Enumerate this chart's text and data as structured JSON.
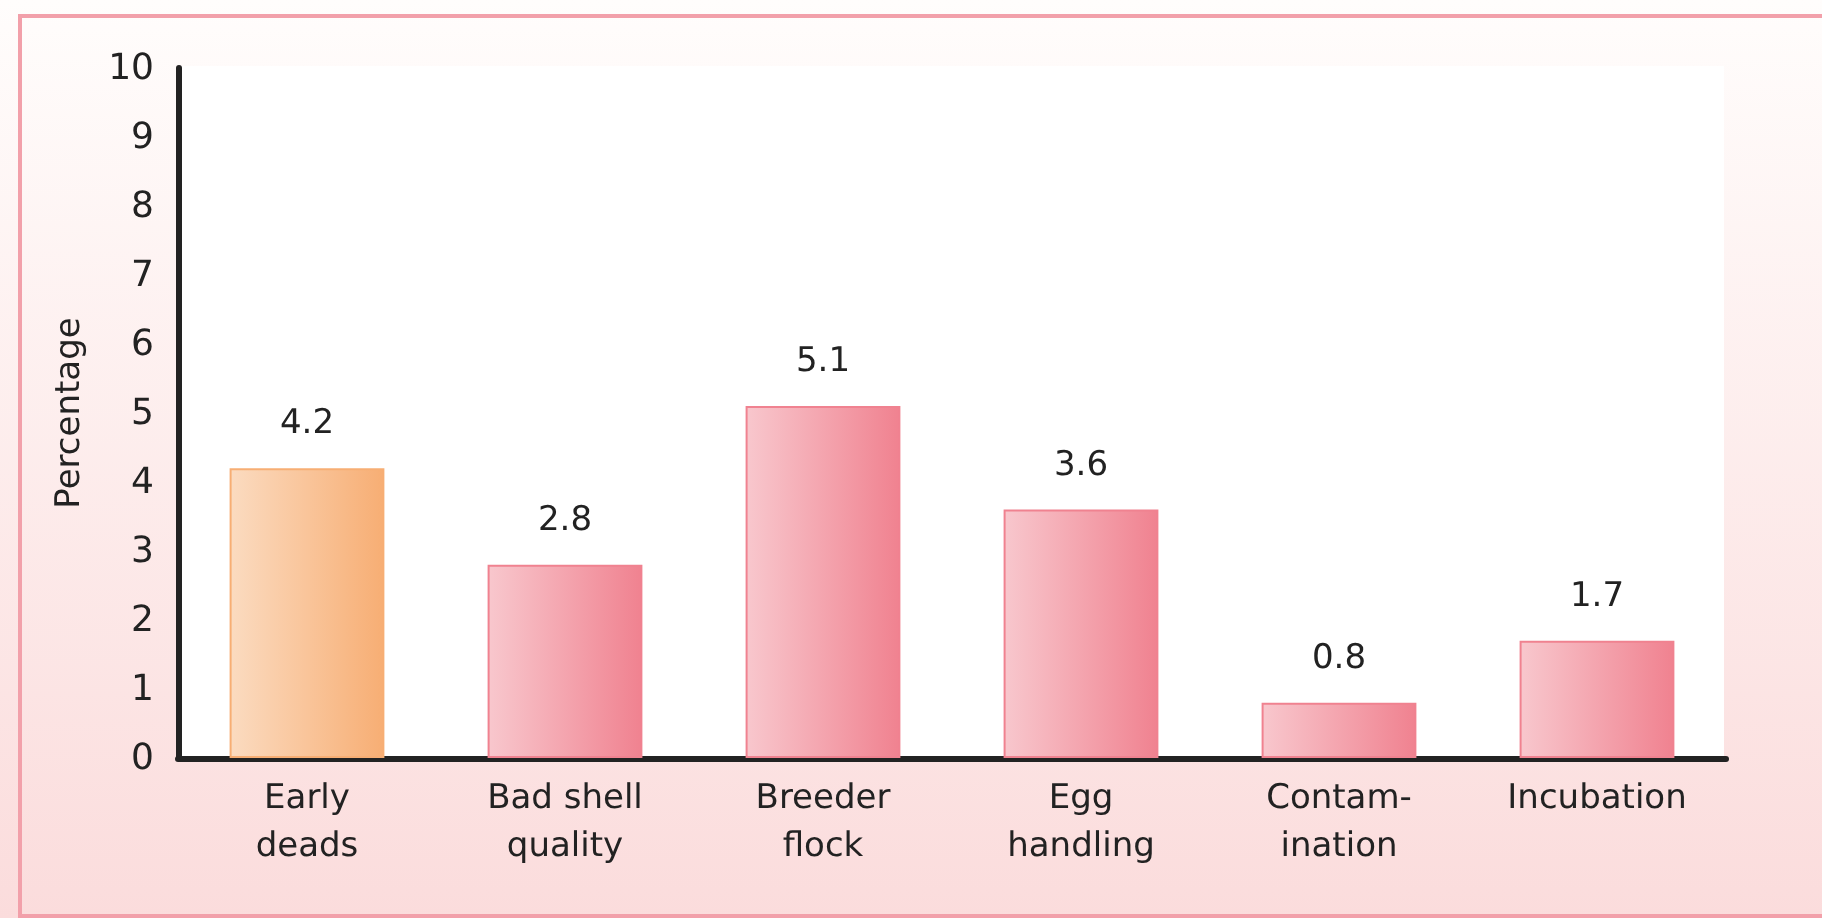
{
  "chart_data": {
    "type": "bar",
    "ylabel": "Percentage",
    "categories": [
      "Early\ndeads",
      "Bad shell\nquality",
      "Breeder\nflock",
      "Egg\nhandling",
      "Contam-\nination",
      "Incubation"
    ],
    "values": [
      4.2,
      2.8,
      5.1,
      3.6,
      0.8,
      1.7
    ],
    "colors": [
      "#f7ae74",
      "#f08290",
      "#f08290",
      "#f08290",
      "#f08290",
      "#f08290"
    ],
    "ylim": [
      0,
      10
    ],
    "yticks": [
      0,
      1,
      2,
      3,
      4,
      5,
      6,
      7,
      8,
      9,
      10
    ],
    "data_labels": true
  }
}
